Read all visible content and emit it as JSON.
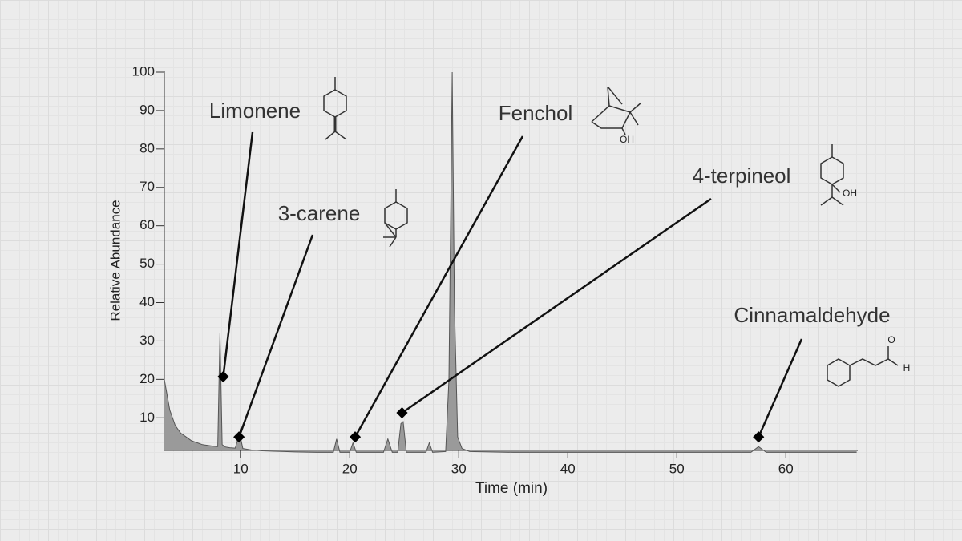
{
  "chart_data": {
    "type": "line",
    "x_label": "Time (min)",
    "y_label": "Relative Abundance",
    "xlim": [
      3,
      66.6
    ],
    "ylim": [
      1.5,
      100
    ],
    "xticks": [
      10,
      20,
      30,
      40,
      50,
      60
    ],
    "yticks": [
      10,
      20,
      30,
      40,
      50,
      60,
      70,
      80,
      90,
      100
    ],
    "series": [
      {
        "color": "#555555",
        "fill": "#9a9a9a",
        "x": [
          3.0,
          3.5,
          4,
          4.5,
          5,
          5.5,
          6,
          6.5,
          7,
          7.5,
          7.9,
          8.1,
          8.3,
          8.6,
          9,
          9.5,
          9.9,
          10.2,
          11,
          12,
          13,
          14,
          15,
          17,
          18.5,
          18.8,
          19.1,
          20.0,
          20.3,
          20.6,
          23.1,
          23.5,
          23.9,
          24.4,
          24.7,
          24.9,
          25.2,
          27.0,
          27.3,
          27.6,
          28.8,
          29.1,
          29.4,
          29.6,
          29.9,
          30.3,
          31,
          35,
          45,
          56.8,
          57.5,
          58.2,
          66.5
        ],
        "values": [
          20,
          12,
          8,
          6,
          5,
          4,
          3.5,
          3,
          2.8,
          2.6,
          2.5,
          32,
          3,
          2.4,
          2.2,
          2.1,
          6,
          2,
          1.6,
          1.4,
          1.3,
          1.2,
          1.1,
          1.0,
          1.0,
          4.5,
          1.0,
          1.0,
          3.5,
          1.0,
          1.0,
          4.5,
          1.0,
          1.0,
          8.5,
          9,
          1.0,
          1.0,
          3.5,
          1.0,
          1.2,
          20,
          100,
          40,
          5,
          2,
          1.2,
          1,
          1,
          1,
          2.5,
          1,
          1
        ]
      }
    ],
    "annotations": [
      {
        "text": "Limonene",
        "x": 8.4,
        "y": 20.7
      },
      {
        "text": "3-carene",
        "x": 9.85,
        "y": 5.0
      },
      {
        "text": "Fenchol",
        "x": 20.5,
        "y": 5.0,
        "structure_text": [
          "OH"
        ]
      },
      {
        "text": "4-terpineol",
        "x": 24.8,
        "y": 11.3,
        "structure_text": [
          "OH"
        ]
      },
      {
        "text": "Cinnamaldehyde",
        "x": 57.5,
        "y": 5.0,
        "structure_text": [
          "O",
          "H"
        ]
      }
    ]
  }
}
